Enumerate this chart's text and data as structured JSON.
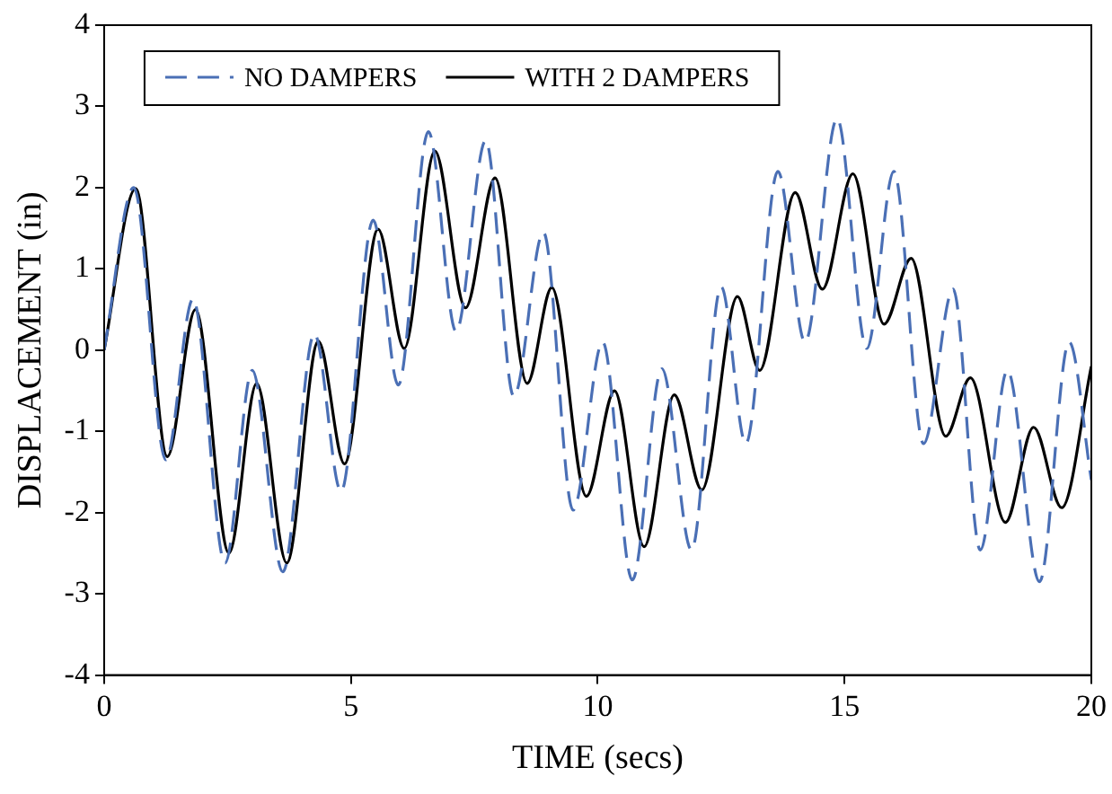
{
  "chart_data": {
    "type": "line",
    "xlabel": "TIME (secs)",
    "ylabel": "DISPLACEMENT (in)",
    "xlim": [
      0,
      20
    ],
    "xticks": [
      0,
      5,
      10,
      15,
      20
    ],
    "ylim": [
      -4,
      4
    ],
    "yticks": [
      -4,
      -3,
      -2,
      -1,
      0,
      1,
      2,
      3,
      4
    ],
    "grid": false,
    "legend": "top left",
    "marker": "none",
    "series": [
      {
        "name": "NO DAMPERS",
        "color": "#4a6fb5",
        "line_style": "dashed",
        "x": [
          0,
          0.6,
          1.25,
          1.8,
          2.45,
          3.0,
          3.62,
          4.26,
          4.8,
          5.45,
          5.96,
          6.57,
          7.13,
          7.73,
          8.3,
          8.9,
          9.5,
          10.1,
          10.7,
          11.3,
          11.9,
          12.5,
          13.0,
          13.65,
          14.2,
          14.85,
          15.45,
          16.0,
          16.6,
          17.2,
          17.75,
          18.3,
          18.95,
          19.55,
          20
        ],
        "values": [
          0,
          2.0,
          -1.35,
          0.63,
          -2.62,
          -0.25,
          -2.73,
          0.2,
          -1.74,
          1.6,
          -0.43,
          2.69,
          0.23,
          2.58,
          -0.57,
          1.45,
          -1.97,
          0.1,
          -2.83,
          -0.23,
          -2.46,
          0.78,
          -1.15,
          2.2,
          0.1,
          2.85,
          0.02,
          2.2,
          -1.15,
          0.75,
          -2.46,
          -0.25,
          -2.85,
          0.1,
          -1.6
        ]
      },
      {
        "name": "WITH 2 DAMPERS",
        "color": "#000000",
        "line_style": "solid",
        "x": [
          0,
          0.64,
          1.28,
          1.85,
          2.53,
          3.09,
          3.7,
          4.34,
          4.87,
          5.55,
          6.08,
          6.7,
          7.32,
          7.92,
          8.57,
          9.07,
          9.77,
          10.34,
          10.94,
          11.55,
          12.11,
          12.83,
          13.28,
          14.0,
          14.55,
          15.17,
          15.8,
          16.35,
          17.05,
          17.55,
          18.26,
          18.83,
          19.4,
          20
        ],
        "values": [
          0,
          1.99,
          -1.31,
          0.5,
          -2.5,
          -0.41,
          -2.62,
          0.11,
          -1.4,
          1.49,
          0.02,
          2.45,
          0.52,
          2.12,
          -0.41,
          0.77,
          -1.8,
          -0.5,
          -2.42,
          -0.55,
          -1.72,
          0.66,
          -0.25,
          1.94,
          0.75,
          2.17,
          0.32,
          1.13,
          -1.06,
          -0.34,
          -2.12,
          -0.95,
          -1.94,
          -0.2
        ]
      }
    ]
  }
}
